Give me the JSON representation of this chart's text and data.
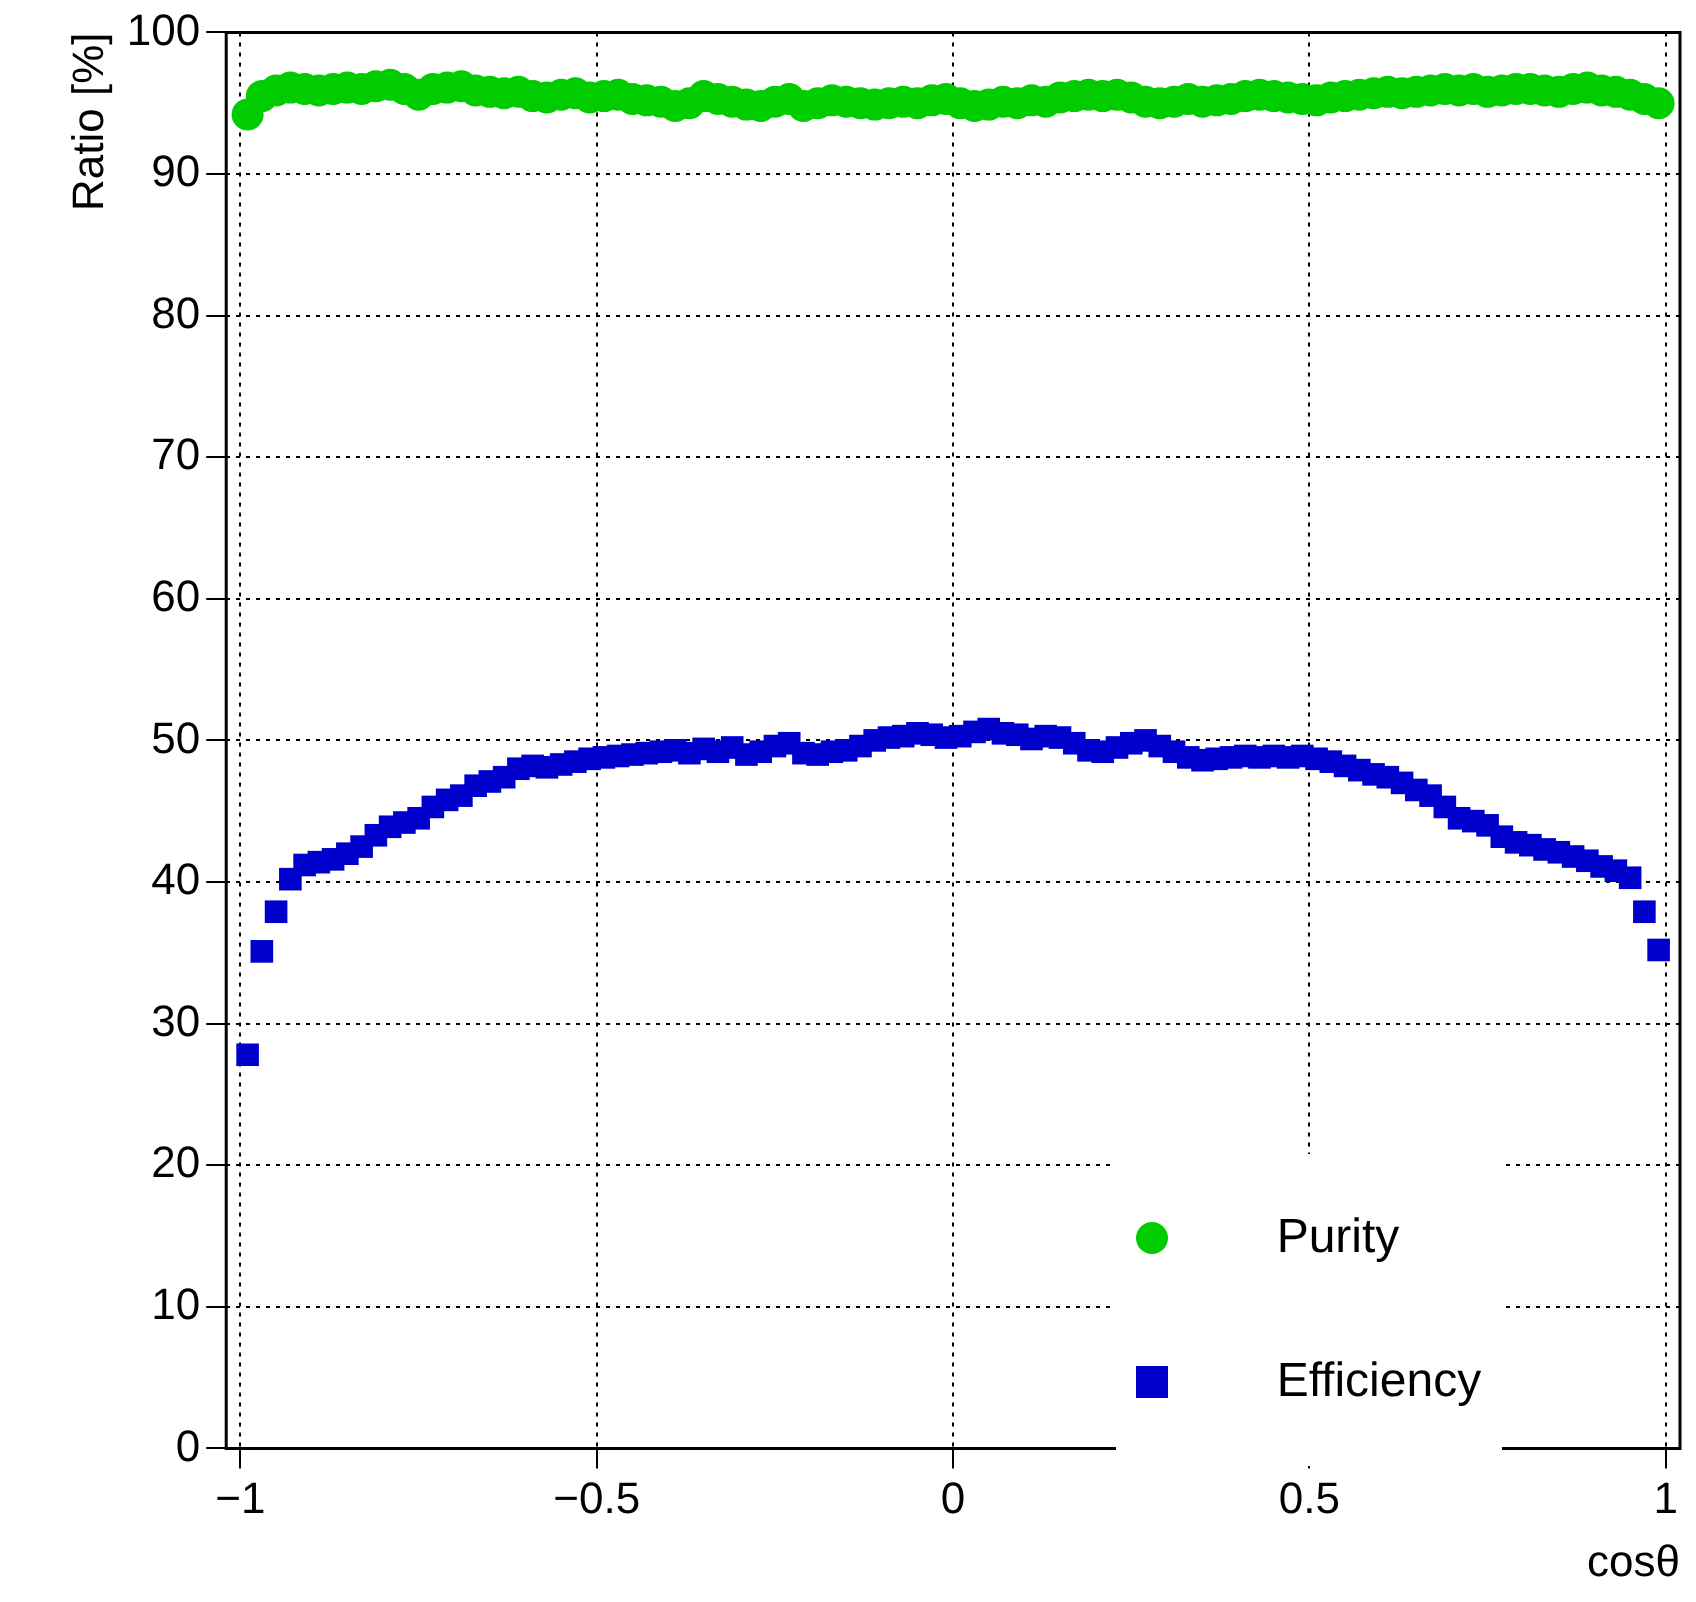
{
  "chart_data": {
    "type": "scatter",
    "xlabel": "cosθ",
    "ylabel": "Ratio [%]",
    "xlim": [
      -1.02,
      1.02
    ],
    "ylim": [
      0,
      100
    ],
    "xticks": [
      {
        "value": -1,
        "label": "−1"
      },
      {
        "value": -0.5,
        "label": "−0.5"
      },
      0,
      0.5,
      1
    ],
    "yticks": [
      0,
      10,
      20,
      30,
      40,
      50,
      60,
      70,
      80,
      90,
      100
    ],
    "grid": true,
    "legend": "bottom right",
    "x": [
      -0.99,
      -0.97,
      -0.95,
      -0.93,
      -0.91,
      -0.89,
      -0.87,
      -0.85,
      -0.83,
      -0.81,
      -0.79,
      -0.77,
      -0.75,
      -0.73,
      -0.71,
      -0.69,
      -0.67,
      -0.65,
      -0.63,
      -0.61,
      -0.59,
      -0.57,
      -0.55,
      -0.53,
      -0.51,
      -0.49,
      -0.47,
      -0.45,
      -0.43,
      -0.41,
      -0.39,
      -0.37,
      -0.35,
      -0.33,
      -0.31,
      -0.29,
      -0.27,
      -0.25,
      -0.23,
      -0.21,
      -0.19,
      -0.17,
      -0.15,
      -0.13,
      -0.11,
      -0.09,
      -0.07,
      -0.05,
      -0.03,
      -0.01,
      0.01,
      0.03,
      0.05,
      0.07,
      0.09,
      0.11,
      0.13,
      0.15,
      0.17,
      0.19,
      0.21,
      0.23,
      0.25,
      0.27,
      0.29,
      0.31,
      0.33,
      0.35,
      0.37,
      0.39,
      0.41,
      0.43,
      0.45,
      0.47,
      0.49,
      0.51,
      0.53,
      0.55,
      0.57,
      0.59,
      0.61,
      0.63,
      0.65,
      0.67,
      0.69,
      0.71,
      0.73,
      0.75,
      0.77,
      0.79,
      0.81,
      0.83,
      0.85,
      0.87,
      0.89,
      0.91,
      0.93,
      0.95,
      0.97,
      0.99
    ],
    "series": [
      {
        "name": "Purity",
        "color": "#00cc00",
        "marker": "circle",
        "values": [
          94.2,
          95.5,
          95.9,
          96.1,
          96.0,
          95.9,
          96.0,
          96.1,
          96.0,
          96.2,
          96.3,
          96.0,
          95.6,
          96.0,
          96.1,
          96.2,
          95.9,
          95.8,
          95.7,
          95.8,
          95.5,
          95.4,
          95.6,
          95.7,
          95.4,
          95.5,
          95.6,
          95.3,
          95.2,
          95.1,
          94.8,
          95.0,
          95.5,
          95.3,
          95.1,
          94.9,
          94.8,
          95.1,
          95.3,
          94.8,
          95.0,
          95.2,
          95.1,
          95.0,
          94.9,
          95.0,
          95.1,
          95.0,
          95.2,
          95.3,
          95.0,
          94.8,
          94.9,
          95.1,
          95.0,
          95.2,
          95.1,
          95.4,
          95.5,
          95.6,
          95.5,
          95.6,
          95.4,
          95.1,
          95.0,
          95.1,
          95.3,
          95.1,
          95.2,
          95.3,
          95.5,
          95.6,
          95.5,
          95.4,
          95.3,
          95.2,
          95.4,
          95.5,
          95.6,
          95.7,
          95.8,
          95.7,
          95.8,
          95.9,
          96.0,
          95.9,
          96.0,
          95.8,
          95.9,
          96.0,
          96.0,
          95.9,
          95.8,
          96.0,
          96.1,
          95.9,
          95.8,
          95.6,
          95.3,
          95.0
        ]
      },
      {
        "name": "Efficiency",
        "color": "#0000cc",
        "marker": "square",
        "values": [
          27.8,
          35.1,
          37.9,
          40.2,
          41.2,
          41.4,
          41.6,
          42.0,
          42.5,
          43.3,
          43.9,
          44.2,
          44.5,
          45.3,
          45.8,
          46.1,
          46.8,
          47.1,
          47.4,
          48.0,
          48.2,
          48.1,
          48.3,
          48.5,
          48.7,
          48.8,
          48.9,
          49.0,
          49.1,
          49.2,
          49.3,
          49.1,
          49.4,
          49.2,
          49.5,
          49.0,
          49.2,
          49.6,
          49.8,
          49.1,
          49.0,
          49.2,
          49.3,
          49.6,
          50.0,
          50.2,
          50.3,
          50.5,
          50.4,
          50.2,
          50.3,
          50.6,
          50.8,
          50.5,
          50.4,
          50.1,
          50.3,
          50.2,
          49.8,
          49.3,
          49.2,
          49.5,
          49.8,
          50.0,
          49.6,
          49.2,
          48.8,
          48.6,
          48.7,
          48.8,
          48.9,
          48.8,
          48.9,
          48.8,
          48.9,
          48.7,
          48.5,
          48.2,
          47.9,
          47.6,
          47.4,
          47.0,
          46.5,
          46.1,
          45.3,
          44.5,
          44.3,
          44.0,
          43.2,
          42.8,
          42.6,
          42.3,
          42.1,
          41.8,
          41.5,
          41.1,
          40.8,
          40.3,
          37.9,
          35.2
        ]
      }
    ]
  }
}
